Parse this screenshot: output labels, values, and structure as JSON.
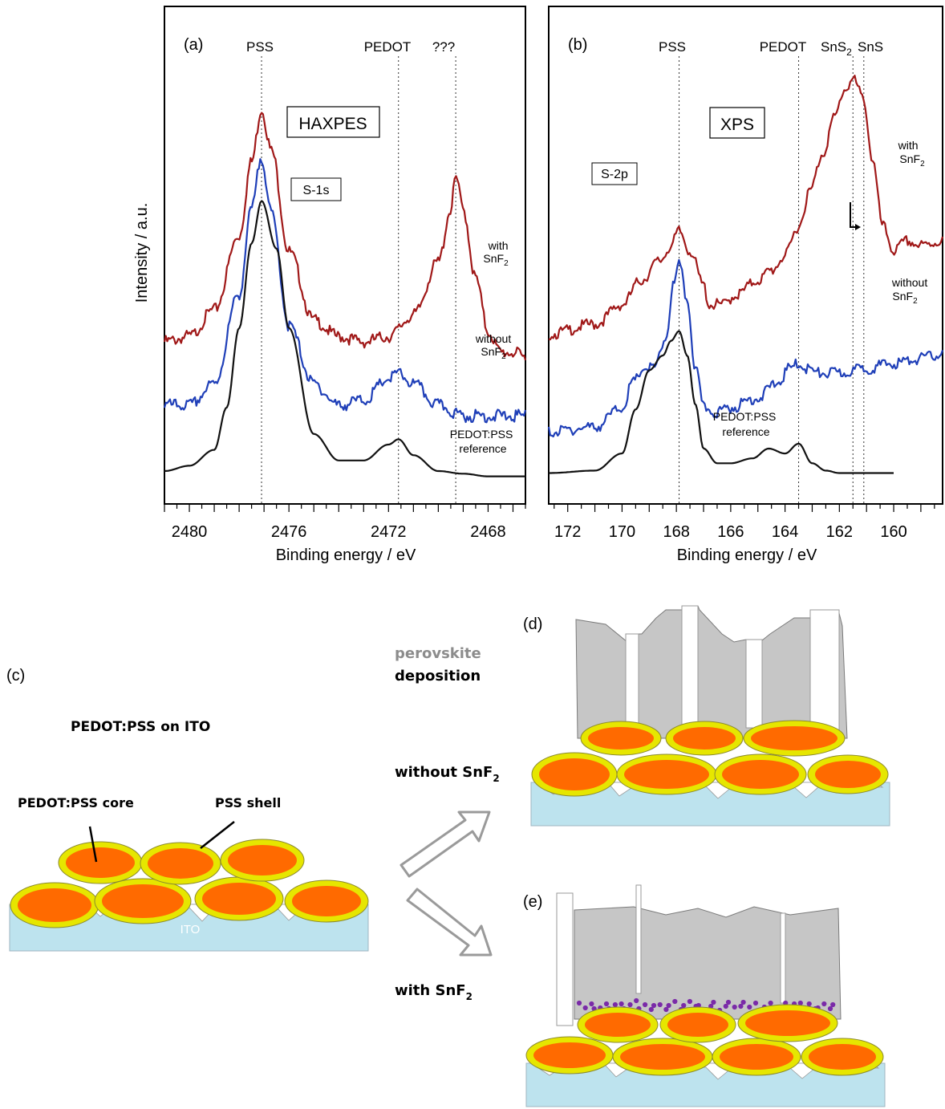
{
  "panel_a": {
    "label": "(a)",
    "technique": "HAXPES",
    "core_level": "S-1s",
    "top_labels": [
      "PSS",
      "PEDOT",
      "???"
    ],
    "curve_labels": [
      [
        "with",
        "SnF",
        "2"
      ],
      [
        "without",
        "SnF",
        "2"
      ],
      [
        "PEDOT:PSS",
        "reference"
      ]
    ]
  },
  "panel_b": {
    "label": "(b)",
    "technique": "XPS",
    "core_level": "S-2p",
    "top_labels": [
      "PSS",
      "PEDOT",
      "SnS",
      "2",
      "SnS"
    ],
    "curve_labels": [
      [
        "with",
        "SnF",
        "2"
      ],
      [
        "without",
        "SnF",
        "2"
      ],
      [
        "PEDOT:PSS",
        "reference"
      ]
    ]
  },
  "ylabel": "Intensity / a.u.",
  "xlabel": "Binding energy / eV",
  "colors": {
    "with_snf2": "#a01818",
    "without_snf2": "#1f3fb8",
    "reference": "#111111",
    "orange": "#ff6a00",
    "yellow": "#e6e600",
    "ito": "#bde3ee",
    "gray": "#c6c6c6",
    "purple": "#7a2aa8"
  },
  "chart_data": [
    {
      "type": "line",
      "xlabel": "Binding energy / eV",
      "ylabel": "Intensity / a.u.",
      "xlim": [
        2481,
        2466.5
      ],
      "xticks": [
        2480,
        2476,
        2472,
        2468
      ],
      "reference_lines_eV": [
        2477.1,
        2471.6,
        2469.3
      ],
      "series": [
        {
          "name": "with SnF2",
          "x": [
            2481,
            2480,
            2479,
            2478,
            2477.5,
            2477.1,
            2476.7,
            2476,
            2475,
            2474,
            2473,
            2472,
            2471,
            2470,
            2469.5,
            2469.3,
            2469,
            2468.5,
            2468,
            2467.5,
            2467,
            2466.5
          ],
          "y": [
            0.3,
            0.31,
            0.36,
            0.5,
            0.64,
            0.74,
            0.66,
            0.47,
            0.34,
            0.31,
            0.3,
            0.31,
            0.35,
            0.45,
            0.55,
            0.61,
            0.55,
            0.42,
            0.32,
            0.28,
            0.28,
            0.27
          ]
        },
        {
          "name": "without SnF2",
          "x": [
            2481,
            2480,
            2479,
            2478,
            2477.5,
            2477.1,
            2476.7,
            2476,
            2475,
            2474,
            2473,
            2472,
            2471.6,
            2471,
            2470,
            2469,
            2468,
            2467,
            2466.5
          ],
          "y": [
            0.18,
            0.18,
            0.22,
            0.39,
            0.55,
            0.65,
            0.54,
            0.33,
            0.22,
            0.18,
            0.19,
            0.23,
            0.24,
            0.22,
            0.18,
            0.16,
            0.16,
            0.16,
            0.16
          ]
        },
        {
          "name": "PEDOT:PSS reference",
          "x": [
            2481,
            2480,
            2479,
            2478.5,
            2478,
            2477.5,
            2477.1,
            2476.5,
            2476,
            2475,
            2474,
            2473,
            2472,
            2471.6,
            2471,
            2470,
            2469,
            2468,
            2467,
            2466.5
          ],
          "y": [
            0.05,
            0.06,
            0.09,
            0.17,
            0.32,
            0.48,
            0.56,
            0.47,
            0.32,
            0.12,
            0.07,
            0.07,
            0.1,
            0.11,
            0.08,
            0.05,
            0.045,
            0.04,
            0.04,
            0.04
          ]
        }
      ]
    },
    {
      "type": "line",
      "xlabel": "Binding energy / eV",
      "ylabel": "Intensity / a.u.",
      "xlim": [
        172.7,
        158.2
      ],
      "xticks": [
        172,
        170,
        168,
        166,
        164,
        162,
        160
      ],
      "reference_lines_eV": [
        167.9,
        163.5,
        161.5,
        161.1
      ],
      "series": [
        {
          "name": "with SnF2",
          "x": [
            172.7,
            171,
            170,
            169.3,
            168.6,
            168.2,
            167.9,
            167.5,
            167.0,
            166.8,
            166.3,
            165.8,
            165,
            164.5,
            164,
            163.5,
            163.1,
            162.6,
            162.2,
            161.8,
            161.5,
            161.1,
            160.8,
            160.4,
            160,
            159.5,
            159,
            158.2
          ],
          "y": [
            0.34,
            0.36,
            0.4,
            0.45,
            0.49,
            0.52,
            0.55,
            0.51,
            0.44,
            0.4,
            0.4,
            0.42,
            0.45,
            0.47,
            0.5,
            0.56,
            0.63,
            0.71,
            0.78,
            0.84,
            0.86,
            0.82,
            0.7,
            0.56,
            0.51,
            0.53,
            0.52,
            0.53
          ]
        },
        {
          "name": "without SnF2",
          "x": [
            172.7,
            171,
            170,
            169.6,
            169.2,
            168.8,
            168.4,
            168.1,
            167.9,
            167.6,
            167.3,
            167.0,
            166.5,
            166,
            165,
            164.3,
            163.8,
            163.5,
            163.2,
            162.8,
            162,
            161,
            160,
            159,
            158.2
          ],
          "y": [
            0.14,
            0.15,
            0.19,
            0.24,
            0.27,
            0.27,
            0.33,
            0.44,
            0.48,
            0.41,
            0.27,
            0.19,
            0.18,
            0.19,
            0.21,
            0.24,
            0.27,
            0.28,
            0.27,
            0.26,
            0.26,
            0.27,
            0.28,
            0.29,
            0.3
          ]
        },
        {
          "name": "PEDOT:PSS reference",
          "x": [
            172.7,
            171,
            170,
            169.5,
            169.0,
            168.5,
            168.2,
            167.9,
            167.6,
            167.3,
            167.0,
            166.5,
            166,
            165.2,
            164.6,
            164.0,
            163.5,
            163.0,
            162.5,
            162,
            161,
            160
          ],
          "y": [
            0.05,
            0.055,
            0.09,
            0.18,
            0.26,
            0.29,
            0.32,
            0.34,
            0.29,
            0.19,
            0.1,
            0.07,
            0.07,
            0.08,
            0.1,
            0.09,
            0.11,
            0.07,
            0.055,
            0.05,
            0.05,
            0.05
          ]
        }
      ]
    }
  ],
  "schematic": {
    "panel_c": "(c)",
    "panel_d": "(d)",
    "panel_e": "(e)",
    "title_c": "PEDOT:PSS on ITO",
    "core_label": "PEDOT:PSS core",
    "shell_label": "PSS shell",
    "ito_label": "ITO",
    "step_word_1": "perovskite",
    "step_word_2": "deposition",
    "without_label": [
      "without SnF",
      "2"
    ],
    "with_label": [
      "with SnF",
      "2"
    ]
  }
}
